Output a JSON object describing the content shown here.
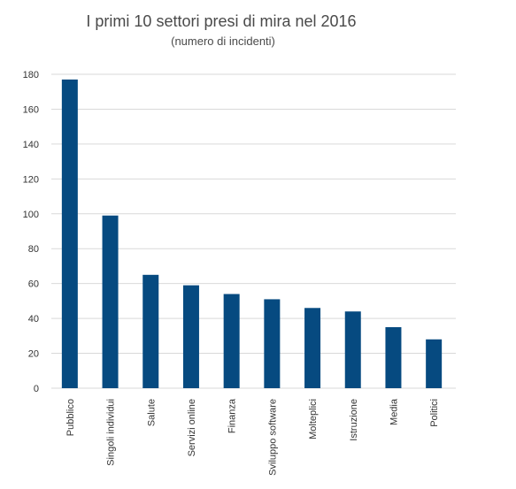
{
  "chart_data": {
    "type": "bar",
    "title": "I primi 10 settori presi di mira nel 2016",
    "subtitle": "(numero di incidenti)",
    "xlabel": "",
    "ylabel": "",
    "categories": [
      "Pubblico",
      "Singoli individui",
      "Salute",
      "Servizi online",
      "Finanza",
      "Sviluppo software",
      "Molteplici",
      "Istruzione",
      "Media",
      "Politici"
    ],
    "values": [
      177,
      99,
      65,
      59,
      54,
      51,
      46,
      44,
      35,
      28
    ],
    "ylim": [
      0,
      180
    ],
    "yticks": [
      0,
      20,
      40,
      60,
      80,
      100,
      120,
      140,
      160,
      180
    ],
    "grid": true,
    "legend": "none",
    "bar_color": "#064a80",
    "grid_color": "#d9d9d9"
  }
}
